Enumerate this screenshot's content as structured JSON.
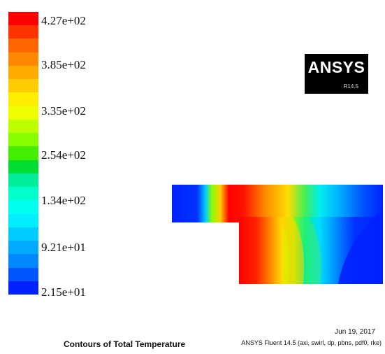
{
  "colorbar": {
    "ticks": [
      "4.27e+02",
      "3.85e+02",
      "3.35e+02",
      "2.54e+02",
      "1.34e+02",
      "9.21e+01",
      "2.15e+01"
    ],
    "bands": [
      "#ff0000",
      "#ff3300",
      "#ff6600",
      "#ff8800",
      "#ffaa00",
      "#ffcc00",
      "#ffee00",
      "#eeff00",
      "#bbff00",
      "#88ff00",
      "#44ee00",
      "#00dd33",
      "#00ee99",
      "#00ffcc",
      "#00ffee",
      "#00eeff",
      "#00ccff",
      "#00aaff",
      "#0088ff",
      "#0055ff",
      "#0022ff"
    ]
  },
  "logo": {
    "name": "ANSYS",
    "release": "R14.5"
  },
  "footer": {
    "caption": "Contours of Total Temperature",
    "date": "Jun 19, 2017",
    "solver": "ANSYS Fluent 14.5 (axi, swirl, dp, pbns, pdf0, rke)"
  }
}
